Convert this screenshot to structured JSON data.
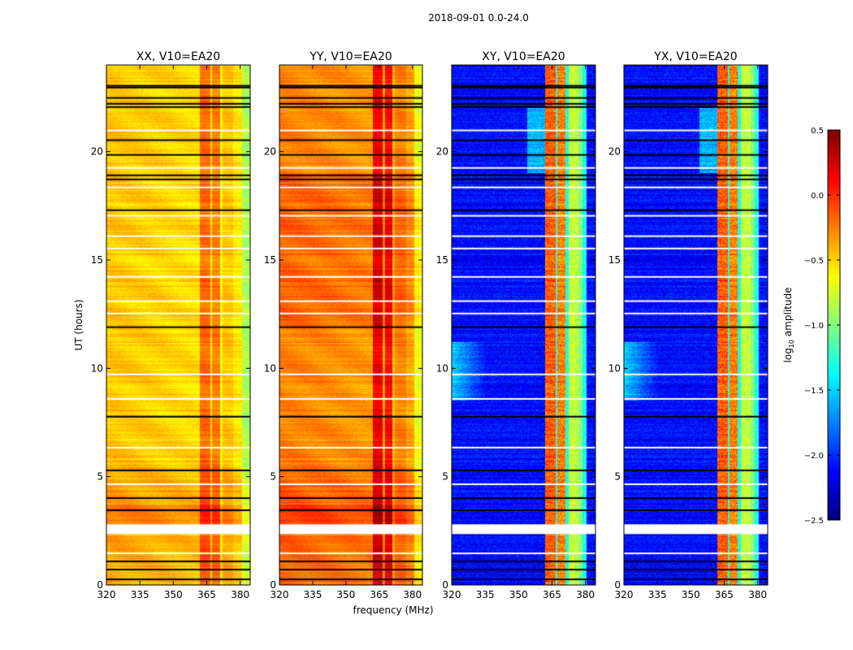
{
  "chart_data": {
    "type": "heatmap",
    "title": "2018-09-01 0.0-24.0",
    "xlabel": "frequency (MHz)",
    "ylabel": "UT (hours)",
    "xlim": [
      320,
      384.5
    ],
    "ylim": [
      0,
      24
    ],
    "xticks": [
      320,
      335,
      350,
      365,
      380
    ],
    "yticks": [
      0,
      5,
      10,
      15,
      20
    ],
    "colormap": "jet",
    "colorbar": {
      "label_prefix": "log",
      "label_sub": "10",
      "label_suffix": " amplitude",
      "range": [
        -2.5,
        0.5
      ],
      "ticks": [
        0.5,
        0.0,
        -0.5,
        -1.0,
        -1.5,
        -2.0,
        -2.5
      ],
      "tick_labels": [
        "0.5",
        "0.0",
        "−0.5",
        "−1.0",
        "−1.5",
        "−2.0",
        "−2.5"
      ]
    },
    "panels": [
      {
        "title": "XX, V10=EA20",
        "pol": "XX"
      },
      {
        "title": "YY, V10=EA20",
        "pol": "YY"
      },
      {
        "title": "XY, V10=EA20",
        "pol": "XY"
      },
      {
        "title": "YX, V10=EA20",
        "pol": "YX"
      }
    ],
    "flagged_ut_black": [
      23.04,
      22.96,
      22.48,
      22.21,
      22.06,
      20.53,
      19.85,
      18.91,
      18.72,
      17.3,
      11.9,
      7.77,
      5.29,
      4.01,
      3.45,
      1.09,
      0.71,
      0.26
    ],
    "flagged_ut_white": [
      20.98,
      19.25,
      18.35,
      17.04,
      16.1,
      15.53,
      14.22,
      13.1,
      12.53,
      9.72,
      8.59,
      6.34,
      4.65,
      1.46
    ],
    "flagged_ut_white_block": [
      2.35,
      2.8
    ]
  }
}
